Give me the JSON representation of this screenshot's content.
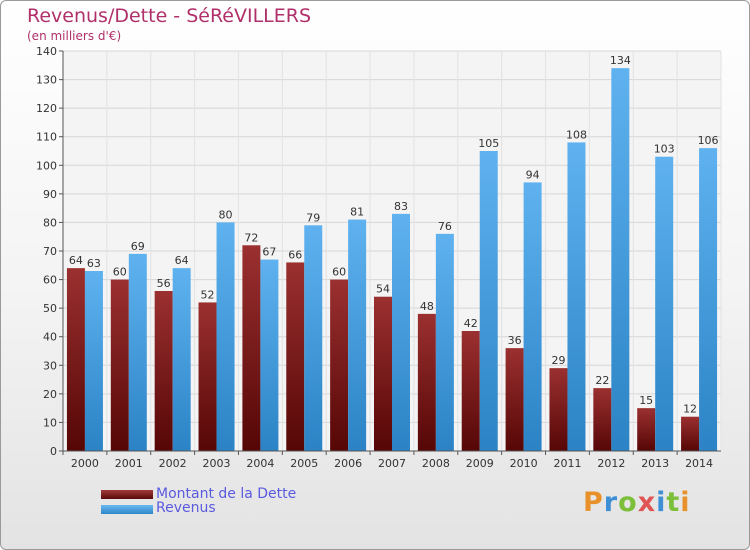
{
  "chart_data": {
    "type": "bar",
    "title": "Revenus/Dette - SéRéVILLERS",
    "subtitle": "(en milliers d'€)",
    "categories": [
      "2000",
      "2001",
      "2002",
      "2003",
      "2004",
      "2005",
      "2006",
      "2007",
      "2008",
      "2009",
      "2010",
      "2011",
      "2012",
      "2013",
      "2014"
    ],
    "series": [
      {
        "name": "Montant de la Dette",
        "color": "#7a1818",
        "values": [
          64,
          60,
          56,
          52,
          72,
          66,
          60,
          54,
          48,
          42,
          36,
          29,
          22,
          15,
          12
        ]
      },
      {
        "name": "Revenus",
        "color": "#4aa3e6",
        "values": [
          63,
          69,
          64,
          80,
          67,
          79,
          81,
          83,
          76,
          105,
          94,
          108,
          134,
          103,
          106
        ]
      }
    ],
    "ylim": [
      0,
      140
    ],
    "yticks": [
      0,
      10,
      20,
      30,
      40,
      50,
      60,
      70,
      80,
      90,
      100,
      110,
      120,
      130,
      140
    ],
    "grid": true,
    "legend_position": "bottom-left",
    "watermark": "Proxiti"
  }
}
